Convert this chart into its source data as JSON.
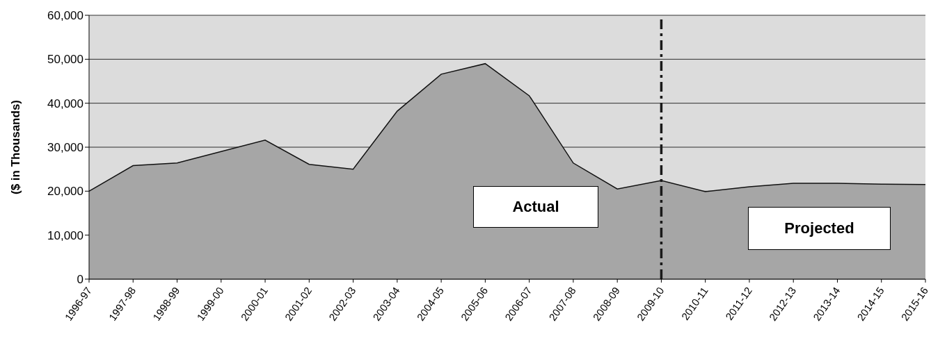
{
  "chart_data": {
    "type": "area",
    "ylabel": "($ in Thousands)",
    "categories": [
      "1996-97",
      "1997-98",
      "1998-99",
      "1999-00",
      "2000-01",
      "2001-02",
      "2002-03",
      "2003-04",
      "2004-05",
      "2005-06",
      "2006-07",
      "2007-08",
      "2008-09",
      "2009-10",
      "2010-11",
      "2011-12",
      "2012-13",
      "2013-14",
      "2014-15",
      "2015-16"
    ],
    "values": [
      20000,
      25800,
      26400,
      29000,
      31600,
      26100,
      25000,
      38200,
      46600,
      49000,
      41700,
      26400,
      20500,
      22400,
      19900,
      21000,
      21800,
      21800,
      21600,
      21500
    ],
    "color": "#a6a6a6",
    "ylim": [
      0,
      60000
    ],
    "yticks": [
      {
        "value": 0,
        "label": "0"
      },
      {
        "value": 10000,
        "label": "10,000"
      },
      {
        "value": 20000,
        "label": "20,000"
      },
      {
        "value": 30000,
        "label": "30,000"
      },
      {
        "value": 40000,
        "label": "40,000"
      },
      {
        "value": 50000,
        "label": "50,000"
      },
      {
        "value": 60000,
        "label": "60,000"
      }
    ],
    "grid": "y",
    "ref_lines": [
      {
        "axis": "x",
        "value": "2009-10",
        "color": "#1a1a1a",
        "line_style": "dashed"
      }
    ],
    "annotations": [
      "Actual",
      "Projected"
    ]
  }
}
